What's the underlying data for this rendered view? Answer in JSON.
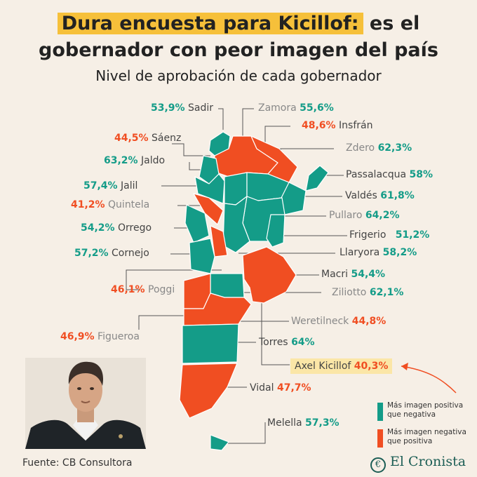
{
  "title": {
    "highlight": "Dura encuesta para Kicillof:",
    "rest_line1": "es el",
    "line2": "gobernador con peor imagen del país"
  },
  "subtitle": "Nivel de aprobación de cada gobernador",
  "governors": [
    {
      "name": "Sadir",
      "pct": "53,9%",
      "status": "positive"
    },
    {
      "name": "Zamora",
      "pct": "55,6%",
      "status": "positive"
    },
    {
      "name": "Sáenz",
      "pct": "44,5%",
      "status": "negative"
    },
    {
      "name": "Insfrán",
      "pct": "48,6%",
      "status": "negative"
    },
    {
      "name": "Jaldo",
      "pct": "63,2%",
      "status": "positive"
    },
    {
      "name": "Zdero",
      "pct": "62,3%",
      "status": "positive"
    },
    {
      "name": "Passalacqua",
      "pct": "58%",
      "status": "positive"
    },
    {
      "name": "Jalil",
      "pct": "57,4%",
      "status": "positive"
    },
    {
      "name": "Valdés",
      "pct": "61,8%",
      "status": "positive"
    },
    {
      "name": "Quintela",
      "pct": "41,2%",
      "status": "negative"
    },
    {
      "name": "Pullaro",
      "pct": "64,2%",
      "status": "positive"
    },
    {
      "name": "Orrego",
      "pct": "54,2%",
      "status": "positive"
    },
    {
      "name": "Frigerio",
      "pct": "51,2%",
      "status": "positive"
    },
    {
      "name": "Cornejo",
      "pct": "57,2%",
      "status": "positive"
    },
    {
      "name": "Llaryora",
      "pct": "58,2%",
      "status": "positive"
    },
    {
      "name": "Macri",
      "pct": "54,4%",
      "status": "positive"
    },
    {
      "name": "Poggi",
      "pct": "46,1%",
      "status": "negative"
    },
    {
      "name": "Ziliotto",
      "pct": "62,1%",
      "status": "positive"
    },
    {
      "name": "Weretilneck",
      "pct": "44,8%",
      "status": "negative"
    },
    {
      "name": "Figueroa",
      "pct": "46,9%",
      "status": "negative"
    },
    {
      "name": "Torres",
      "pct": "64%",
      "status": "positive"
    },
    {
      "name": "Axel Kicillof",
      "pct": "40,3%",
      "status": "negative"
    },
    {
      "name": "Vidal",
      "pct": "47,7%",
      "status": "negative"
    },
    {
      "name": "Melella",
      "pct": "57,3%",
      "status": "positive"
    }
  ],
  "legend": {
    "positive_line1": "Más imagen positiva",
    "positive_line2": "que negativa",
    "negative_line1": "Más imagen negativa",
    "negative_line2": "que positiva"
  },
  "footer": "Fuente: CB Consultora",
  "brand": "El Cronista",
  "colors": {
    "positive": "#149c88",
    "negative": "#f04e22",
    "highlight": "#f6c03a",
    "background": "#f6efe6"
  }
}
